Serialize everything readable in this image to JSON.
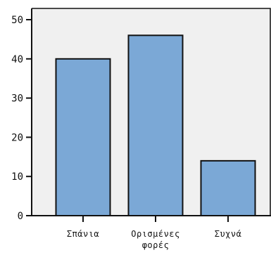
{
  "chart_data": {
    "type": "bar",
    "categories": [
      "Σπάνια",
      "Ορισμένες φορές",
      "Συχνά"
    ],
    "values": [
      40,
      46,
      14
    ],
    "ylim": [
      0,
      50
    ],
    "yticks": [
      0,
      10,
      20,
      30,
      40,
      50
    ],
    "grid": false,
    "colors": {
      "plot_background": "#f0f0f0",
      "bar_fill": "#7ba8d6",
      "bar_stroke": "#111111",
      "axis": "#111111"
    }
  }
}
